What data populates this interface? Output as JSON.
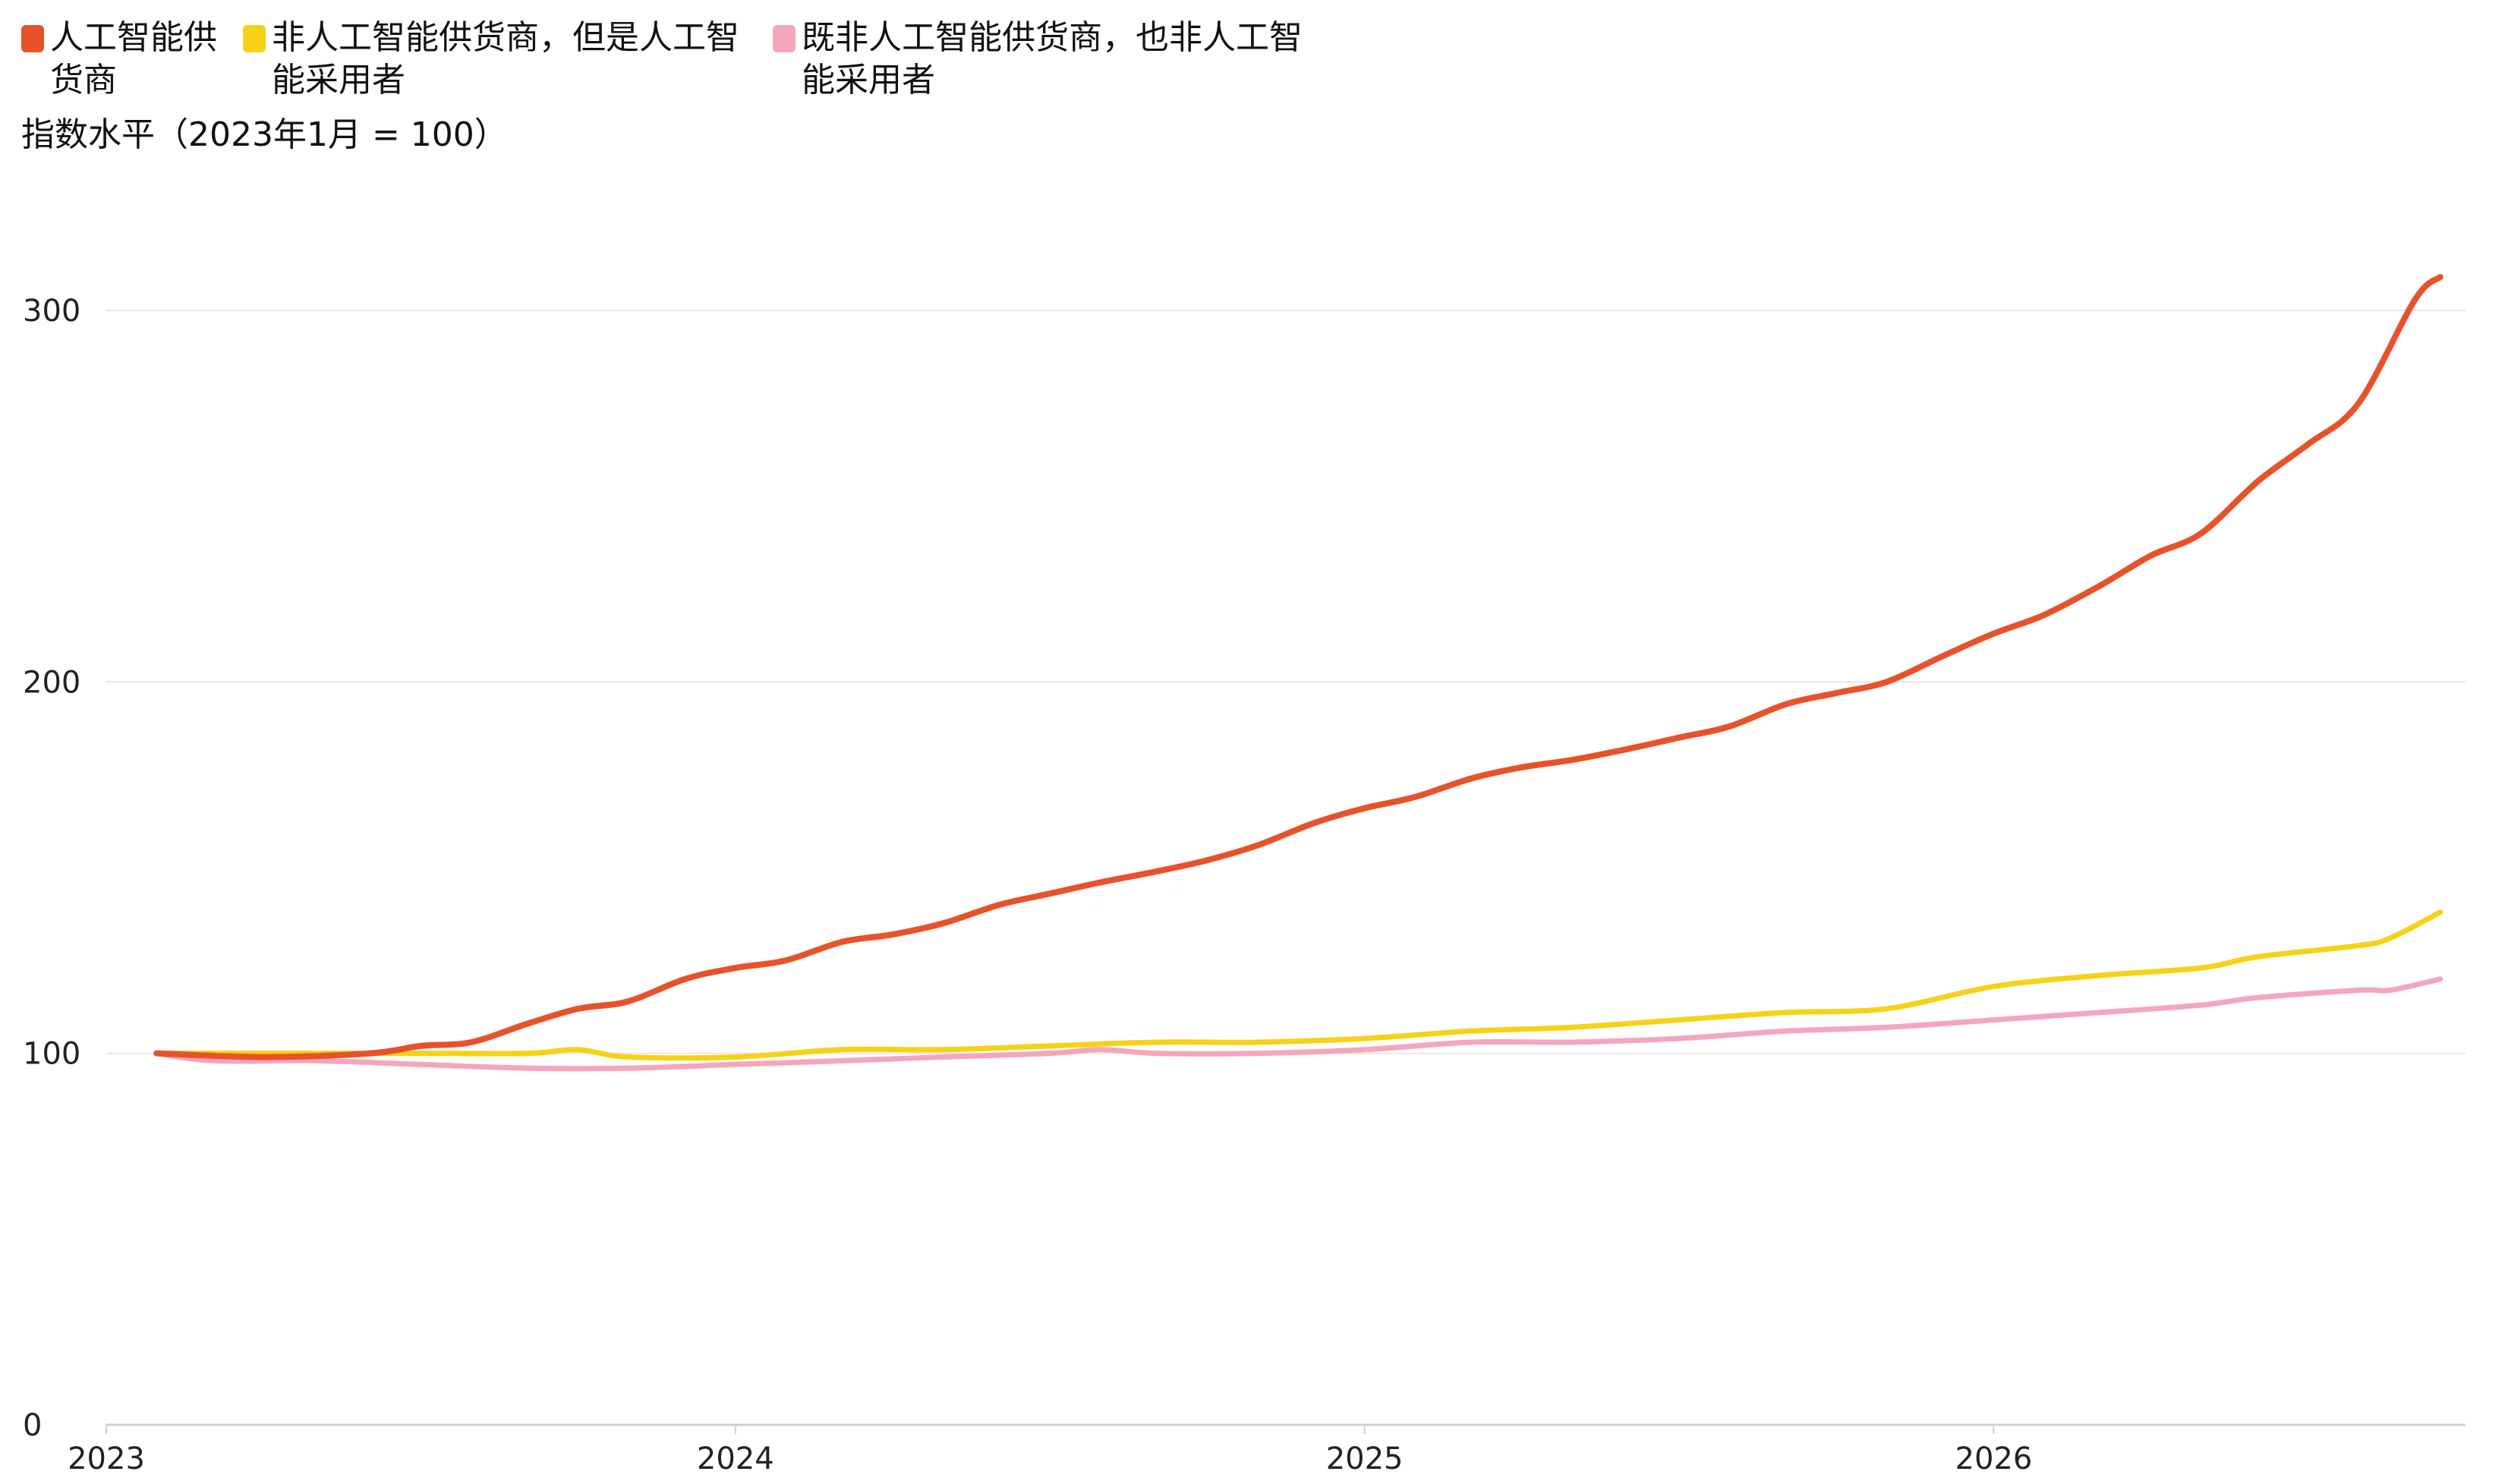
{
  "legend": [
    {
      "label": "人工智能供货商",
      "color": "#e8522a"
    },
    {
      "label": "非人工智能供货商，但是人工智能采用者",
      "color": "#f7d117"
    },
    {
      "label": "既非人工智能供货商，也非人工智能采用者",
      "color": "#f4a6bb"
    }
  ],
  "y_unit_label": "指数水平（2023年1月 = 100）",
  "chart_data": {
    "type": "line",
    "title": "",
    "xlabel": "",
    "ylabel": "指数水平（2023年1月 = 100）",
    "xlim": [
      2023.0,
      2026.75
    ],
    "ylim": [
      0,
      310
    ],
    "x_ticks": [
      2023,
      2024,
      2025,
      2026
    ],
    "x_tick_labels": [
      "2023",
      "2024",
      "2025",
      "2026"
    ],
    "y_ticks": [
      0,
      100,
      200,
      300
    ],
    "y_tick_labels": [
      "0",
      "100",
      "200",
      "300"
    ],
    "grid": "horizontal",
    "legend_position": "top-left",
    "series": [
      {
        "name": "人工智能供货商",
        "color": "#e8522a",
        "points": [
          [
            2023.08,
            100
          ],
          [
            2023.25,
            99
          ],
          [
            2023.42,
            100
          ],
          [
            2023.5,
            102
          ],
          [
            2023.58,
            103
          ],
          [
            2023.67,
            108
          ],
          [
            2023.75,
            112
          ],
          [
            2023.83,
            114
          ],
          [
            2023.92,
            120
          ],
          [
            2024.0,
            123
          ],
          [
            2024.08,
            125
          ],
          [
            2024.17,
            130
          ],
          [
            2024.25,
            132
          ],
          [
            2024.33,
            135
          ],
          [
            2024.42,
            140
          ],
          [
            2024.5,
            143
          ],
          [
            2024.58,
            146
          ],
          [
            2024.67,
            149
          ],
          [
            2024.75,
            152
          ],
          [
            2024.83,
            156
          ],
          [
            2024.92,
            162
          ],
          [
            2025.0,
            166
          ],
          [
            2025.08,
            169
          ],
          [
            2025.17,
            174
          ],
          [
            2025.25,
            177
          ],
          [
            2025.33,
            179
          ],
          [
            2025.42,
            182
          ],
          [
            2025.5,
            185
          ],
          [
            2025.58,
            188
          ],
          [
            2025.67,
            194
          ],
          [
            2025.75,
            197
          ],
          [
            2025.83,
            200
          ],
          [
            2025.92,
            207
          ],
          [
            2026.0,
            213
          ],
          [
            2026.08,
            218
          ],
          [
            2026.17,
            226
          ],
          [
            2026.25,
            234
          ],
          [
            2026.33,
            240
          ],
          [
            2026.42,
            254
          ],
          [
            2026.5,
            264
          ],
          [
            2026.58,
            275
          ],
          [
            2026.67,
            303
          ],
          [
            2026.71,
            309
          ]
        ]
      },
      {
        "name": "非人工智能供货商，但是人工智能采用者",
        "color": "#f7d117",
        "points": [
          [
            2023.08,
            100
          ],
          [
            2023.17,
            100
          ],
          [
            2023.33,
            100
          ],
          [
            2023.5,
            100
          ],
          [
            2023.67,
            100
          ],
          [
            2023.75,
            101
          ],
          [
            2023.83,
            99
          ],
          [
            2024.0,
            99
          ],
          [
            2024.17,
            101
          ],
          [
            2024.33,
            101
          ],
          [
            2024.5,
            102
          ],
          [
            2024.67,
            103
          ],
          [
            2024.83,
            103
          ],
          [
            2025.0,
            104
          ],
          [
            2025.17,
            106
          ],
          [
            2025.33,
            107
          ],
          [
            2025.5,
            109
          ],
          [
            2025.67,
            111
          ],
          [
            2025.83,
            112
          ],
          [
            2026.0,
            118
          ],
          [
            2026.17,
            121
          ],
          [
            2026.33,
            123
          ],
          [
            2026.42,
            126
          ],
          [
            2026.58,
            129
          ],
          [
            2026.63,
            131
          ],
          [
            2026.71,
            138
          ]
        ]
      },
      {
        "name": "既非人工智能供货商，也非人工智能采用者",
        "color": "#f4a6bb",
        "points": [
          [
            2023.08,
            100
          ],
          [
            2023.17,
            98
          ],
          [
            2023.33,
            98
          ],
          [
            2023.5,
            97
          ],
          [
            2023.67,
            96
          ],
          [
            2023.83,
            96
          ],
          [
            2024.0,
            97
          ],
          [
            2024.17,
            98
          ],
          [
            2024.33,
            99
          ],
          [
            2024.5,
            100
          ],
          [
            2024.58,
            101
          ],
          [
            2024.67,
            100
          ],
          [
            2024.83,
            100
          ],
          [
            2025.0,
            101
          ],
          [
            2025.17,
            103
          ],
          [
            2025.33,
            103
          ],
          [
            2025.5,
            104
          ],
          [
            2025.67,
            106
          ],
          [
            2025.83,
            107
          ],
          [
            2026.0,
            109
          ],
          [
            2026.17,
            111
          ],
          [
            2026.33,
            113
          ],
          [
            2026.42,
            115
          ],
          [
            2026.58,
            117
          ],
          [
            2026.63,
            117
          ],
          [
            2026.71,
            120
          ]
        ]
      }
    ]
  }
}
